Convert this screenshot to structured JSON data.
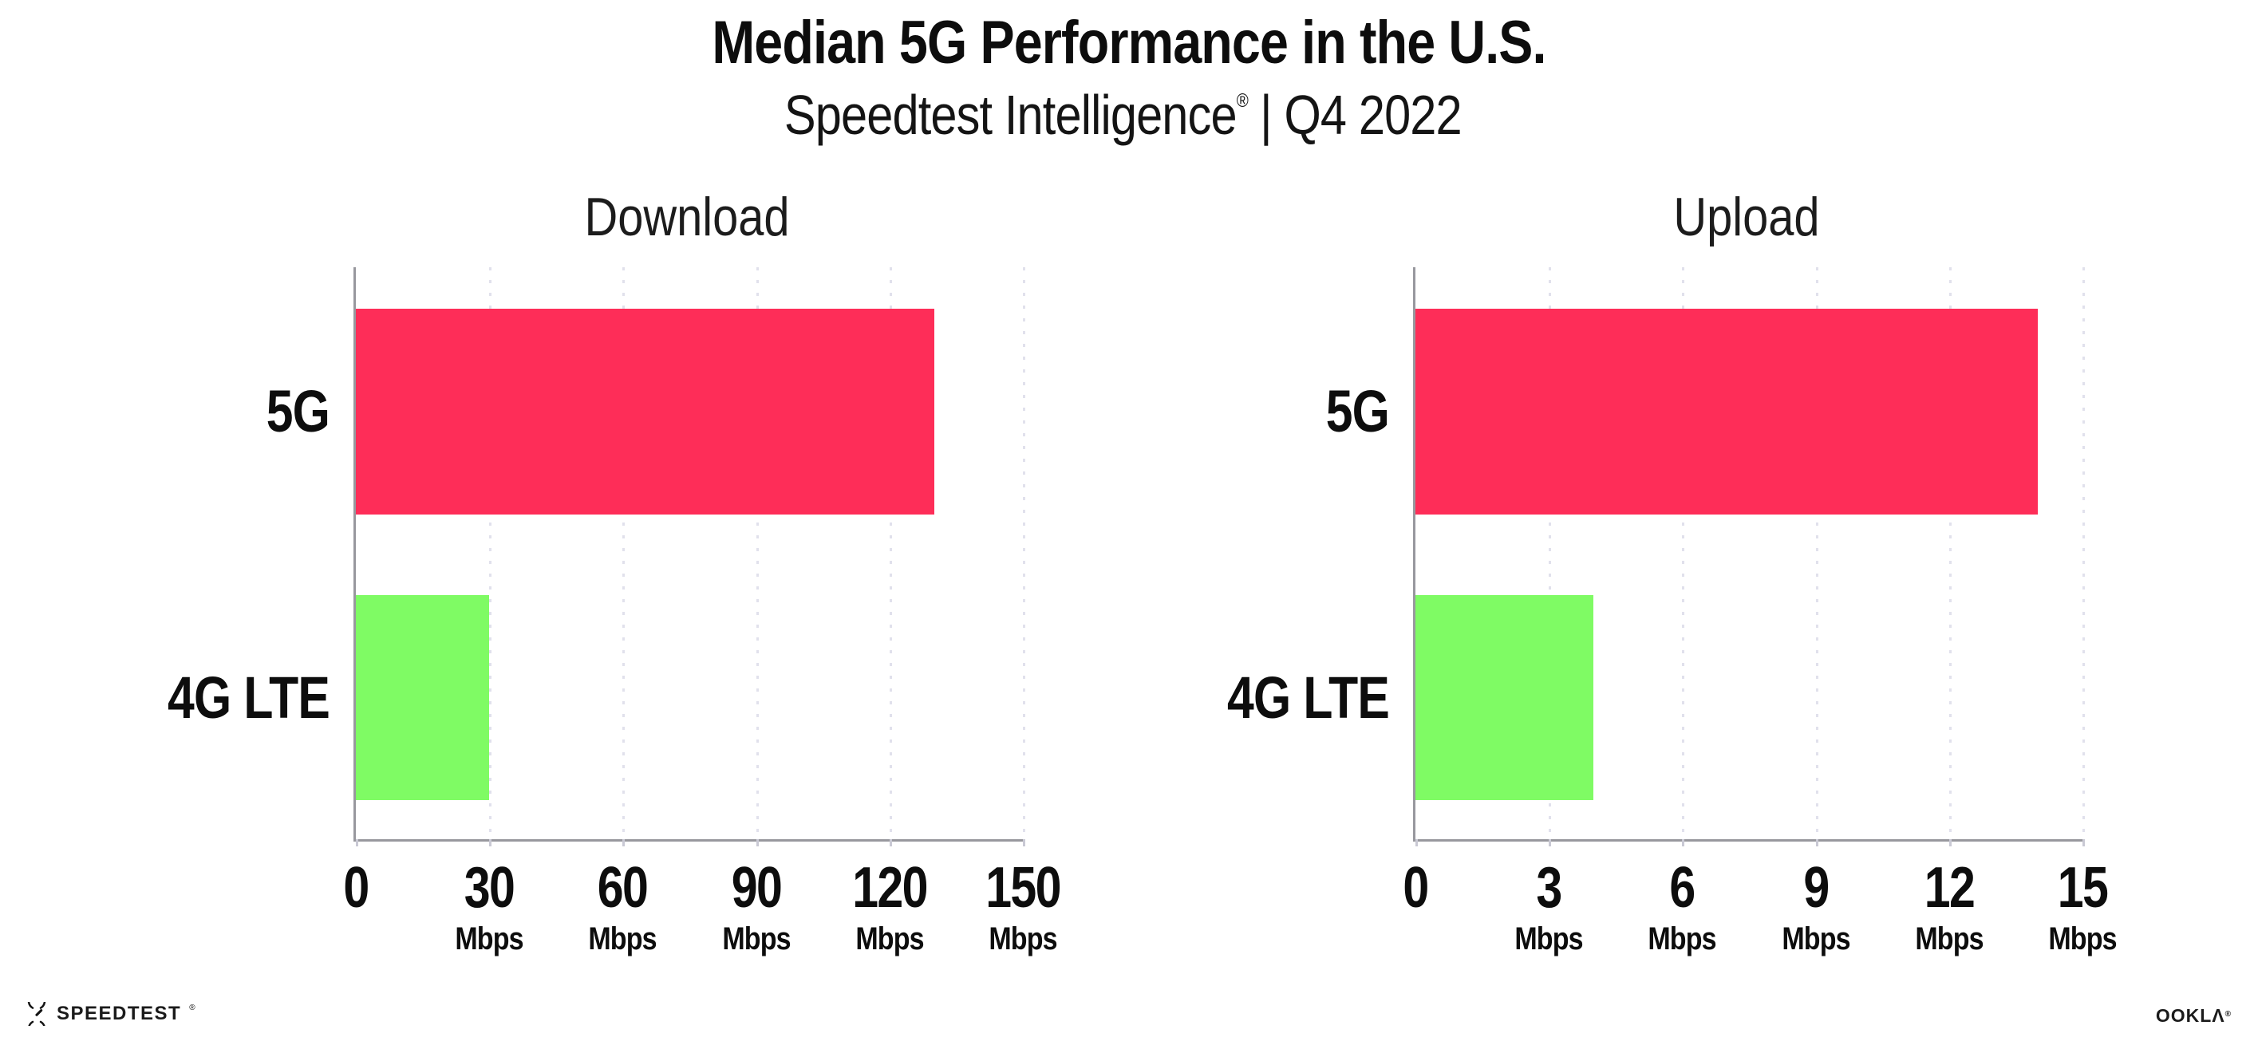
{
  "header": {
    "title": "Median 5G Performance in the U.S.",
    "subtitle": {
      "product": "Speedtest Intelligence",
      "reg": "®",
      "rest": "| Q4 2022"
    }
  },
  "charts": [
    {
      "title": "Download",
      "axis": {
        "min": 0,
        "max": 150,
        "unit": "Mbps"
      },
      "ticks": [
        {
          "label": "0",
          "unit": ""
        },
        {
          "label": "30",
          "unit": "Mbps"
        },
        {
          "label": "60",
          "unit": "Mbps"
        },
        {
          "label": "90",
          "unit": "Mbps"
        },
        {
          "label": "120",
          "unit": "Mbps"
        },
        {
          "label": "150",
          "unit": "Mbps"
        }
      ],
      "bars": [
        {
          "category": "5G",
          "value": 130,
          "color": "#fe2d58"
        },
        {
          "category": "4G LTE",
          "value": 30,
          "color": "#7ffb64"
        }
      ]
    },
    {
      "title": "Upload",
      "axis": {
        "min": 0,
        "max": 15,
        "unit": "Mbps"
      },
      "ticks": [
        {
          "label": "0",
          "unit": ""
        },
        {
          "label": "3",
          "unit": "Mbps"
        },
        {
          "label": "6",
          "unit": "Mbps"
        },
        {
          "label": "9",
          "unit": "Mbps"
        },
        {
          "label": "12",
          "unit": "Mbps"
        },
        {
          "label": "15",
          "unit": "Mbps"
        }
      ],
      "bars": [
        {
          "category": "5G",
          "value": 14,
          "color": "#fe2d58"
        },
        {
          "category": "4G LTE",
          "value": 4,
          "color": "#7ffb64"
        }
      ]
    }
  ],
  "chart_data": [
    {
      "type": "bar",
      "orientation": "horizontal",
      "suptitle": "Median 5G Performance in the U.S.",
      "subtitle": "Speedtest Intelligence® | Q4 2022",
      "title": "Download",
      "categories": [
        "5G",
        "4G LTE"
      ],
      "values": [
        130,
        30
      ],
      "xlabel": "Mbps",
      "ylabel": "",
      "xlim": [
        0,
        150
      ],
      "xticks": [
        0,
        30,
        60,
        90,
        120,
        150
      ],
      "grid": true,
      "colors": [
        "#fe2d58",
        "#7ffb64"
      ]
    },
    {
      "type": "bar",
      "orientation": "horizontal",
      "suptitle": "Median 5G Performance in the U.S.",
      "subtitle": "Speedtest Intelligence® | Q4 2022",
      "title": "Upload",
      "categories": [
        "5G",
        "4G LTE"
      ],
      "values": [
        14,
        4
      ],
      "xlabel": "Mbps",
      "ylabel": "",
      "xlim": [
        0,
        15
      ],
      "xticks": [
        0,
        3,
        6,
        9,
        12,
        15
      ],
      "grid": true,
      "colors": [
        "#fe2d58",
        "#7ffb64"
      ]
    }
  ],
  "footer": {
    "speedtest": {
      "text": "SPEEDTEST",
      "reg": "®",
      "icon": "speedtest-gauge-icon"
    },
    "ookla": {
      "text": "OOKLΛ",
      "reg": "®"
    }
  }
}
